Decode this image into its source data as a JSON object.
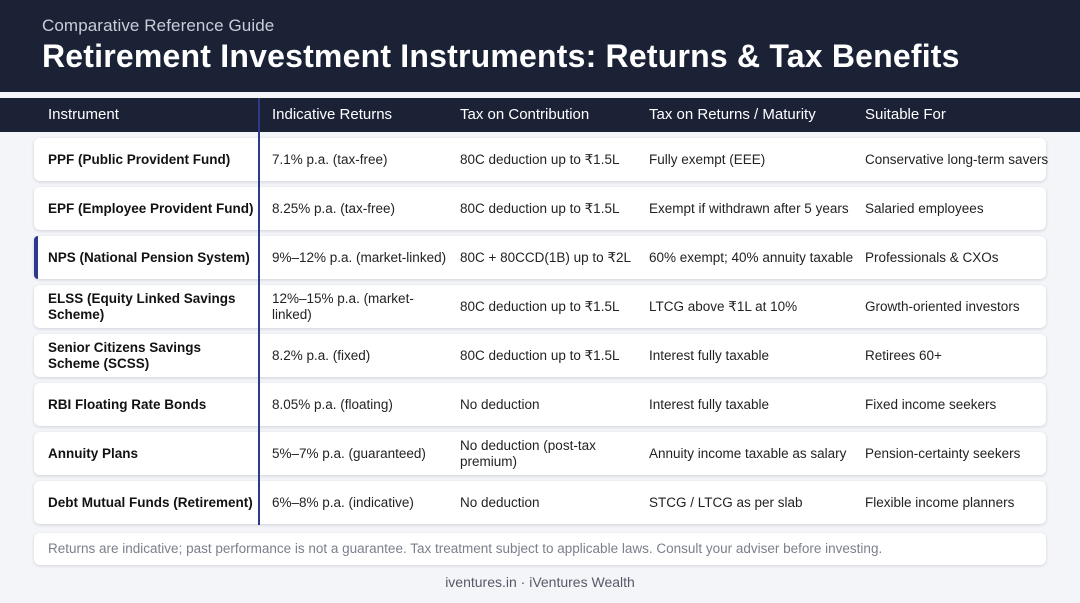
{
  "header": {
    "subtitle": "Comparative Reference Guide",
    "title": "Retirement Investment Instruments: Returns & Tax Benefits"
  },
  "columns": [
    "Instrument",
    "Indicative Returns",
    "Tax on Contribution",
    "Tax on Returns / Maturity",
    "Suitable For"
  ],
  "rows": [
    {
      "instrument": "PPF (Public Provident Fund)",
      "returns": "7.1% p.a. (tax-free)",
      "tax_contribution": "80C deduction up to ₹1.5L",
      "tax_returns": "Fully exempt (EEE)",
      "suitable": "Conservative long-term savers"
    },
    {
      "instrument": "EPF (Employee Provident Fund)",
      "returns": "8.25% p.a. (tax-free)",
      "tax_contribution": "80C deduction up to ₹1.5L",
      "tax_returns": "Exempt if withdrawn after 5 years",
      "suitable": "Salaried employees"
    },
    {
      "instrument": "NPS (National Pension System)",
      "returns": "9%–12% p.a. (market-linked)",
      "tax_contribution": "80C + 80CCD(1B) up to ₹2L",
      "tax_returns": "60% exempt; 40% annuity taxable",
      "suitable": "Professionals & CXOs",
      "highlighted": true
    },
    {
      "instrument": "ELSS (Equity Linked Savings Scheme)",
      "returns": "12%–15% p.a. (market-linked)",
      "tax_contribution": "80C deduction up to ₹1.5L",
      "tax_returns": "LTCG above ₹1L at 10%",
      "suitable": "Growth-oriented investors"
    },
    {
      "instrument": "Senior Citizens Savings Scheme (SCSS)",
      "returns": "8.2% p.a. (fixed)",
      "tax_contribution": "80C deduction up to ₹1.5L",
      "tax_returns": "Interest fully taxable",
      "suitable": "Retirees 60+"
    },
    {
      "instrument": "RBI Floating Rate Bonds",
      "returns": "8.05% p.a. (floating)",
      "tax_contribution": "No deduction",
      "tax_returns": "Interest fully taxable",
      "suitable": "Fixed income seekers"
    },
    {
      "instrument": "Annuity Plans",
      "returns": "5%–7% p.a. (guaranteed)",
      "tax_contribution": "No deduction (post-tax premium)",
      "tax_returns": "Annuity income taxable as salary",
      "suitable": "Pension-certainty seekers"
    },
    {
      "instrument": "Debt Mutual Funds (Retirement)",
      "returns": "6%–8% p.a. (indicative)",
      "tax_contribution": "No deduction",
      "tax_returns": "STCG / LTCG as per slab",
      "suitable": "Flexible income planners"
    }
  ],
  "footnote": "Returns are indicative; past performance is not a guarantee. Tax treatment subject to applicable laws. Consult your adviser before investing.",
  "brand": "iventures.in  ·  iVentures Wealth",
  "colors": {
    "header_bg": "#1b2236",
    "accent": "#2d3a8c",
    "page_bg": "#f4f5f8"
  }
}
